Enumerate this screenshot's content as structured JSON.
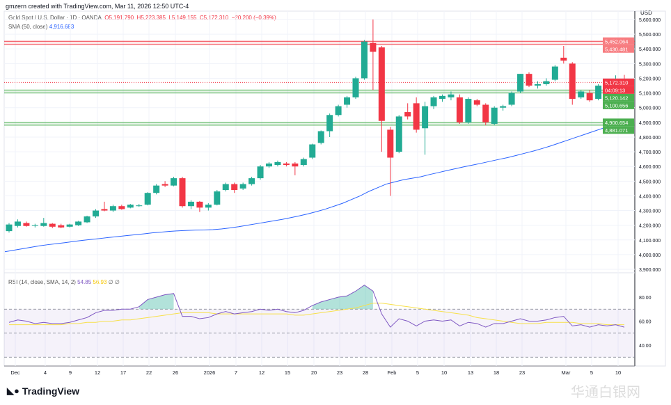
{
  "credit": "gmzern created with TradingView.com, Mar 11, 2026 12:50 UTC-4",
  "symbol": {
    "name": "Gold Spot / U.S. Dollar · 1D · OANDA",
    "o": "O5,191.790",
    "h": "H5,223.385",
    "l": "L5,149.155",
    "c": "C5,172.310",
    "change": "−20.200 (−0.39%)"
  },
  "sma": {
    "label": "SMA (50, close)",
    "value": "4,916.683"
  },
  "rsi": {
    "label": "RSI (14, close, SMA, 14, 2)",
    "value": "54.85",
    "sma_value": "56.93",
    "extra": "∅ ∅"
  },
  "currency": "USD",
  "colors": {
    "up": "#22ab94",
    "down": "#f23645",
    "sma": "#2962ff",
    "rsi": "#7e57c2",
    "rsi_sma": "#f7e04a"
  },
  "price_ticks": [
    "5,600.000",
    "5,500.000",
    "5,400.000",
    "5,300.000",
    "5,200.000",
    "5,100.000",
    "5,000.000",
    "4,900.000",
    "4,800.000",
    "4,700.000",
    "4,600.000",
    "4,500.000",
    "4,400.000",
    "4,300.000",
    "4,200.000",
    "4,100.000",
    "4,000.000",
    "3,900.000"
  ],
  "rsi_ticks": [
    "80.00",
    "60.00",
    "40.00"
  ],
  "price_labels": [
    {
      "text": "5,452.064",
      "kind": "red",
      "price": 5452
    },
    {
      "text": "5,430.481",
      "kind": "red",
      "price": 5430
    },
    {
      "text": "5,172.310",
      "kind": "last",
      "price": 5172
    },
    {
      "text": "04:09:13",
      "kind": "timer",
      "price": 5140
    },
    {
      "text": "5,120.142",
      "kind": "green",
      "price": 5120
    },
    {
      "text": "5,100.656",
      "kind": "green",
      "price": 5100
    },
    {
      "text": "4,900.654",
      "kind": "green",
      "price": 4900
    },
    {
      "text": "4,881.071",
      "kind": "green",
      "price": 4881
    }
  ],
  "x_labels": [
    "Dec",
    "4",
    "9",
    "12",
    "17",
    "22",
    "26",
    "2026",
    "7",
    "12",
    "15",
    "20",
    "23",
    "28",
    "Feb",
    "5",
    "10",
    "13",
    "18",
    "23",
    "Mar",
    "5",
    "10"
  ],
  "branding": "TradingView",
  "watermark": "华通白银网",
  "chart_data": {
    "type": "candlestick",
    "ylim": [
      3900,
      5600
    ],
    "candles": [
      [
        4160,
        4215,
        4150,
        4205
      ],
      [
        4195,
        4240,
        4185,
        4225
      ],
      [
        4215,
        4225,
        4190,
        4195
      ],
      [
        4200,
        4210,
        4185,
        4200
      ],
      [
        4195,
        4250,
        4190,
        4215
      ],
      [
        4210,
        4215,
        4180,
        4190
      ],
      [
        4200,
        4210,
        4180,
        4185
      ],
      [
        4190,
        4210,
        4185,
        4205
      ],
      [
        4200,
        4230,
        4195,
        4225
      ],
      [
        4220,
        4265,
        4215,
        4260
      ],
      [
        4260,
        4310,
        4250,
        4300
      ],
      [
        4310,
        4360,
        4295,
        4300
      ],
      [
        4300,
        4340,
        4290,
        4330
      ],
      [
        4330,
        4340,
        4305,
        4310
      ],
      [
        4320,
        4345,
        4315,
        4340
      ],
      [
        4330,
        4345,
        4325,
        4335
      ],
      [
        4340,
        4425,
        4335,
        4420
      ],
      [
        4420,
        4480,
        4410,
        4470
      ],
      [
        4480,
        4500,
        4460,
        4470
      ],
      [
        4470,
        4530,
        4465,
        4520
      ],
      [
        4520,
        4530,
        4320,
        4330
      ],
      [
        4330,
        4370,
        4310,
        4360
      ],
      [
        4360,
        4365,
        4290,
        4320
      ],
      [
        4320,
        4350,
        4300,
        4340
      ],
      [
        4340,
        4440,
        4335,
        4430
      ],
      [
        4440,
        4490,
        4430,
        4480
      ],
      [
        4480,
        4490,
        4420,
        4440
      ],
      [
        4450,
        4490,
        4440,
        4480
      ],
      [
        4480,
        4530,
        4470,
        4520
      ],
      [
        4520,
        4610,
        4510,
        4600
      ],
      [
        4600,
        4630,
        4590,
        4620
      ],
      [
        4610,
        4640,
        4600,
        4630
      ],
      [
        4620,
        4630,
        4600,
        4610
      ],
      [
        4620,
        4630,
        4540,
        4600
      ],
      [
        4610,
        4660,
        4600,
        4650
      ],
      [
        4660,
        4755,
        4650,
        4750
      ],
      [
        4760,
        4845,
        4750,
        4840
      ],
      [
        4840,
        4960,
        4800,
        4950
      ],
      [
        4950,
        5020,
        4940,
        5010
      ],
      [
        5020,
        5080,
        5000,
        5070
      ],
      [
        5070,
        5210,
        5060,
        5200
      ],
      [
        5200,
        5460,
        5190,
        5450
      ],
      [
        5440,
        5600,
        5120,
        5380
      ],
      [
        5410,
        5420,
        4700,
        4910
      ],
      [
        4850,
        4870,
        4400,
        4660
      ],
      [
        4700,
        4950,
        4690,
        4940
      ],
      [
        4970,
        5030,
        4920,
        4940
      ],
      [
        5030,
        5070,
        4830,
        4850
      ],
      [
        4860,
        5040,
        4680,
        5010
      ],
      [
        5010,
        5080,
        4990,
        5070
      ],
      [
        5060,
        5090,
        5040,
        5080
      ],
      [
        5070,
        5110,
        5050,
        5090
      ],
      [
        5070,
        5090,
        4890,
        4900
      ],
      [
        4900,
        5070,
        4890,
        5060
      ],
      [
        5050,
        5060,
        5010,
        5020
      ],
      [
        5020,
        5030,
        4880,
        4900
      ],
      [
        4890,
        5010,
        4880,
        5000
      ],
      [
        5000,
        5020,
        4980,
        5010
      ],
      [
        5020,
        5110,
        5010,
        5100
      ],
      [
        5110,
        5230,
        5100,
        5230
      ],
      [
        5230,
        5240,
        5140,
        5150
      ],
      [
        5150,
        5180,
        5130,
        5160
      ],
      [
        5160,
        5200,
        5150,
        5180
      ],
      [
        5190,
        5290,
        5180,
        5280
      ],
      [
        5340,
        5420,
        5300,
        5320
      ],
      [
        5300,
        5310,
        5020,
        5060
      ],
      [
        5070,
        5120,
        5060,
        5110
      ],
      [
        5100,
        5120,
        5040,
        5050
      ],
      [
        5060,
        5160,
        5050,
        5150
      ],
      [
        5150,
        5160,
        5020,
        5140
      ],
      [
        5120,
        5220,
        5110,
        5190
      ],
      [
        5192,
        5223,
        5149,
        5172
      ]
    ],
    "sma": [
      4020,
      4030,
      4040,
      4050,
      4060,
      4068,
      4075,
      4082,
      4090,
      4097,
      4104,
      4110,
      4117,
      4123,
      4129,
      4135,
      4141,
      4148,
      4153,
      4158,
      4162,
      4165,
      4167,
      4168,
      4170,
      4175,
      4182,
      4190,
      4200,
      4210,
      4220,
      4230,
      4240,
      4252,
      4264,
      4278,
      4293,
      4310,
      4330,
      4350,
      4375,
      4400,
      4430,
      4455,
      4480,
      4495,
      4510,
      4520,
      4530,
      4545,
      4558,
      4572,
      4585,
      4598,
      4610,
      4622,
      4635,
      4648,
      4660,
      4675,
      4690,
      4705,
      4722,
      4740,
      4760,
      4780,
      4800,
      4820,
      4840,
      4860,
      4885,
      4910
    ],
    "rsi": [
      59,
      61,
      60,
      58,
      59,
      58,
      58,
      59,
      61,
      63,
      67,
      69,
      69,
      70,
      70,
      72,
      78,
      80,
      82,
      83,
      64,
      64,
      62,
      63,
      66,
      68,
      66,
      67,
      68,
      70,
      69,
      70,
      68,
      67,
      69,
      73,
      76,
      78,
      80,
      81,
      85,
      90,
      85,
      66,
      55,
      62,
      60,
      56,
      60,
      61,
      60,
      61,
      56,
      59,
      58,
      55,
      58,
      58,
      60,
      62,
      60,
      60,
      61,
      63,
      64,
      56,
      57,
      55,
      57,
      56,
      57,
      55
    ],
    "rsi_sma": [
      57,
      57,
      57,
      57,
      57,
      57,
      57,
      58,
      58,
      59,
      59,
      60,
      60,
      61,
      61,
      62,
      63,
      64,
      65,
      66,
      67,
      67,
      67,
      67,
      66,
      66,
      66,
      66,
      66,
      66,
      66,
      66,
      66,
      65,
      65,
      66,
      67,
      68,
      69,
      70,
      71,
      73,
      75,
      75,
      74,
      73,
      72,
      71,
      70,
      69,
      68,
      67,
      66,
      65,
      63,
      62,
      61,
      60,
      59,
      58,
      58,
      58,
      59,
      59,
      59,
      59,
      58,
      58,
      58,
      57,
      57,
      57
    ],
    "rsi_levels": [
      70,
      50,
      30
    ],
    "rsi_ylim": [
      25,
      95
    ]
  }
}
